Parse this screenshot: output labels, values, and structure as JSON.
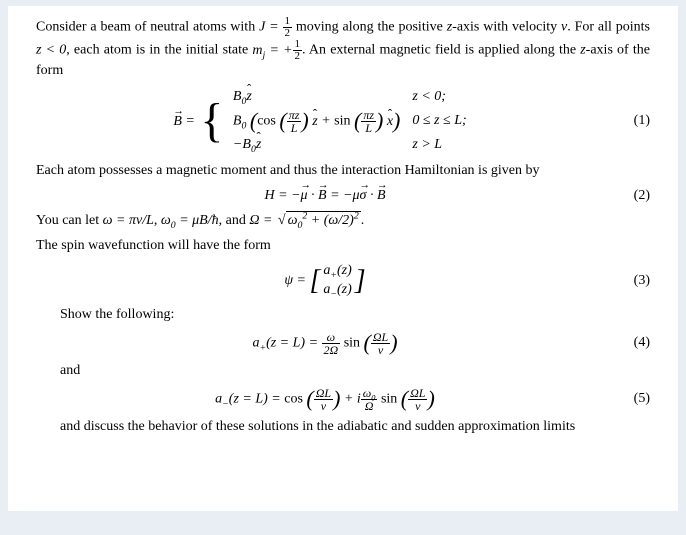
{
  "para1_a": "Consider a beam of neutral atoms with ",
  "para1_b": " moving along the positive ",
  "para1_c": "-axis with velocity ",
  "para1_d": ". For all points ",
  "para1_e": ", each atom is in the initial state ",
  "para1_f": ". An external magnetic field is applied along the ",
  "para1_g": "-axis of the form",
  "J_eq": "J = ",
  "half_num": "1",
  "half_den": "2",
  "z": "z",
  "v": "v",
  "zlt0": "z < 0",
  "mj_eq": "m",
  "mj_sub": "j",
  "eqsign": " = +",
  "Bvec": "B",
  "B0": "B",
  "zero": "0",
  "zhat": "z",
  "xhat": "x",
  "cos": "cos",
  "sin": "sin",
  "piz": "πz",
  "L": "L",
  "case1_cond": "z < 0;",
  "case2_cond": "0 ≤ z ≤ L;",
  "case3_cond": "z > L",
  "eq1": "(1)",
  "para2": "Each atom possesses a magnetic moment and thus the interaction Hamiltonian is given by",
  "H": "H",
  "mu": "μ",
  "sigma": "σ",
  "dot": " · ",
  "minus": "−",
  "eq2": "(2)",
  "para3_a": "You can let ",
  "omega_eq": "ω = πv/L",
  "sep": ", ",
  "omega0_eq": "ω",
  "omega0_rhs": " = μB/ħ",
  "and_txt": ", and ",
  "Omega": "Ω",
  "Omega_rhs": " = ",
  "omega0sq": "ω",
  "plus": " + (ω/2)",
  "sq": "2",
  "period": ".",
  "para4": "The spin wavefunction will have the form",
  "psi": "ψ",
  "aplus": "a",
  "plus_sub": "+",
  "minus_sub": "−",
  "of_z": "(z)",
  "eq3": "(3)",
  "show": "Show the following:",
  "azL": "(z = L) = ",
  "omega_sym": "ω",
  "twoOmega": "2Ω",
  "OmegaL": "ΩL",
  "eq4": "(4)",
  "and_word": "and",
  "i": "i",
  "eq5": "(5)",
  "para5": "and discuss the behavior of these solutions in the adiabatic and sudden approximation limits"
}
